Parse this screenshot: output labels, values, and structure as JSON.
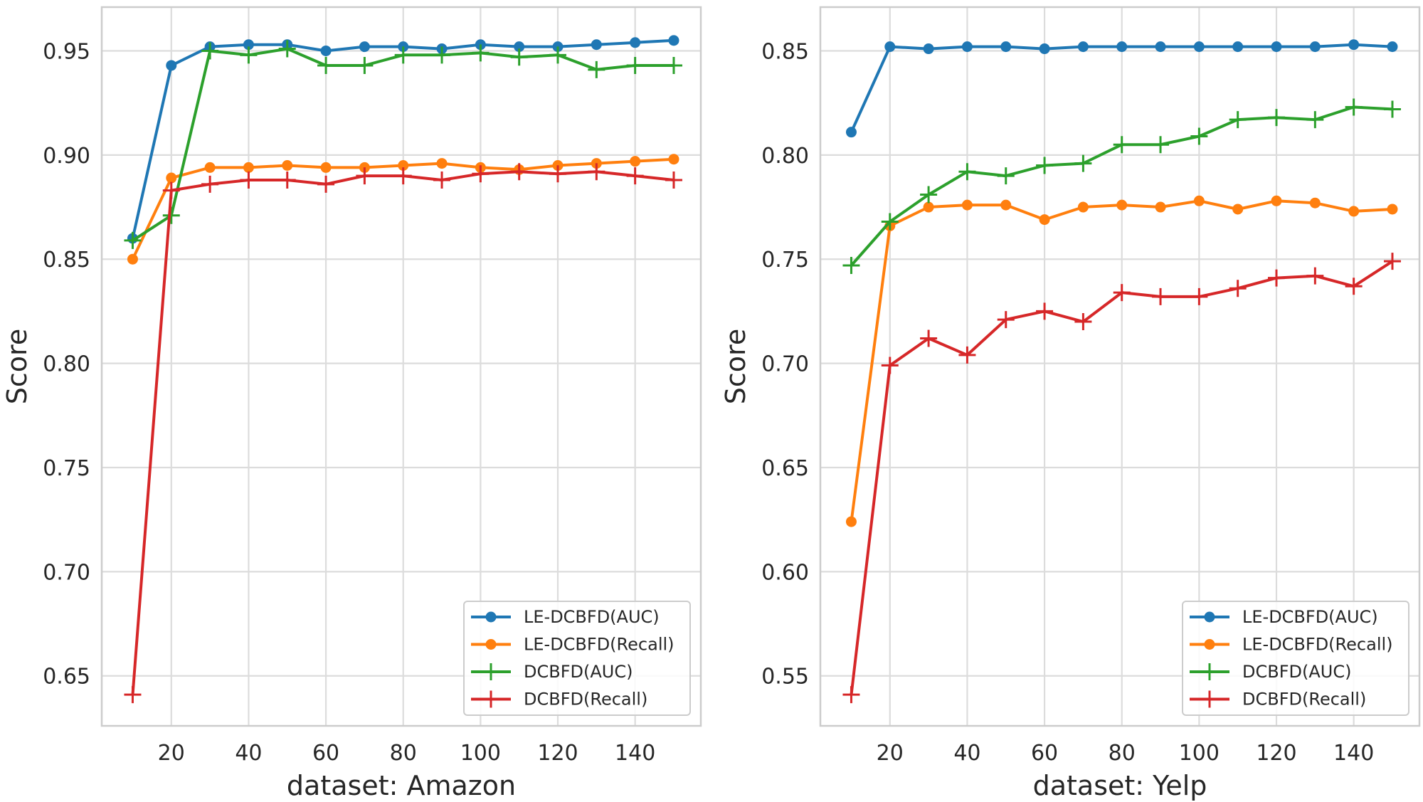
{
  "chart_data": [
    {
      "type": "line",
      "title": "",
      "xlabel": "dataset: Amazon",
      "ylabel": "Score",
      "xlim": [
        2,
        157
      ],
      "ylim": [
        0.626,
        0.971
      ],
      "xticks": [
        20,
        40,
        60,
        80,
        100,
        120,
        140
      ],
      "yticks": [
        0.65,
        0.7,
        0.75,
        0.8,
        0.85,
        0.9,
        0.95
      ],
      "ytick_labels": [
        "0.65",
        "0.70",
        "0.75",
        "0.80",
        "0.85",
        "0.90",
        "0.95"
      ],
      "grid": true,
      "legend_position": "bottom-right",
      "x": [
        10,
        20,
        30,
        40,
        50,
        60,
        70,
        80,
        90,
        100,
        110,
        120,
        130,
        140,
        150
      ],
      "series": [
        {
          "name": "LE-DCBFD(AUC)",
          "color": "#1f77b4",
          "marker": "circle",
          "values": [
            0.86,
            0.943,
            0.952,
            0.953,
            0.953,
            0.95,
            0.952,
            0.952,
            0.951,
            0.953,
            0.952,
            0.952,
            0.953,
            0.954,
            0.955
          ]
        },
        {
          "name": "LE-DCBFD(Recall)",
          "color": "#ff7f0e",
          "marker": "circle",
          "values": [
            0.85,
            0.889,
            0.894,
            0.894,
            0.895,
            0.894,
            0.894,
            0.895,
            0.896,
            0.894,
            0.893,
            0.895,
            0.896,
            0.897,
            0.898
          ]
        },
        {
          "name": "DCBFD(AUC)",
          "color": "#2ca02c",
          "marker": "plus",
          "values": [
            0.859,
            0.871,
            0.95,
            0.948,
            0.951,
            0.943,
            0.943,
            0.948,
            0.948,
            0.949,
            0.947,
            0.948,
            0.941,
            0.943,
            0.943
          ]
        },
        {
          "name": "DCBFD(Recall)",
          "color": "#d62728",
          "marker": "plus",
          "values": [
            0.641,
            0.883,
            0.886,
            0.888,
            0.888,
            0.886,
            0.89,
            0.89,
            0.888,
            0.891,
            0.892,
            0.891,
            0.892,
            0.89,
            0.888
          ]
        }
      ]
    },
    {
      "type": "line",
      "title": "",
      "xlabel": "dataset: Yelp",
      "ylabel": "Score",
      "xlim": [
        2,
        157
      ],
      "ylim": [
        0.526,
        0.871
      ],
      "xticks": [
        20,
        40,
        60,
        80,
        100,
        120,
        140
      ],
      "yticks": [
        0.55,
        0.6,
        0.65,
        0.7,
        0.75,
        0.8,
        0.85
      ],
      "ytick_labels": [
        "0.55",
        "0.60",
        "0.65",
        "0.70",
        "0.75",
        "0.80",
        "0.85"
      ],
      "grid": true,
      "legend_position": "bottom-right",
      "x": [
        10,
        20,
        30,
        40,
        50,
        60,
        70,
        80,
        90,
        100,
        110,
        120,
        130,
        140,
        150
      ],
      "series": [
        {
          "name": "LE-DCBFD(AUC)",
          "color": "#1f77b4",
          "marker": "circle",
          "values": [
            0.811,
            0.852,
            0.851,
            0.852,
            0.852,
            0.851,
            0.852,
            0.852,
            0.852,
            0.852,
            0.852,
            0.852,
            0.852,
            0.853,
            0.852
          ]
        },
        {
          "name": "LE-DCBFD(Recall)",
          "color": "#ff7f0e",
          "marker": "circle",
          "values": [
            0.624,
            0.766,
            0.775,
            0.776,
            0.776,
            0.769,
            0.775,
            0.776,
            0.775,
            0.778,
            0.774,
            0.778,
            0.777,
            0.773,
            0.774
          ]
        },
        {
          "name": "DCBFD(AUC)",
          "color": "#2ca02c",
          "marker": "plus",
          "values": [
            0.747,
            0.768,
            0.781,
            0.792,
            0.79,
            0.795,
            0.796,
            0.805,
            0.805,
            0.809,
            0.817,
            0.818,
            0.817,
            0.823,
            0.822
          ]
        },
        {
          "name": "DCBFD(Recall)",
          "color": "#d62728",
          "marker": "plus",
          "values": [
            0.541,
            0.699,
            0.712,
            0.704,
            0.721,
            0.725,
            0.72,
            0.734,
            0.732,
            0.732,
            0.736,
            0.741,
            0.742,
            0.737,
            0.749
          ]
        }
      ]
    }
  ]
}
